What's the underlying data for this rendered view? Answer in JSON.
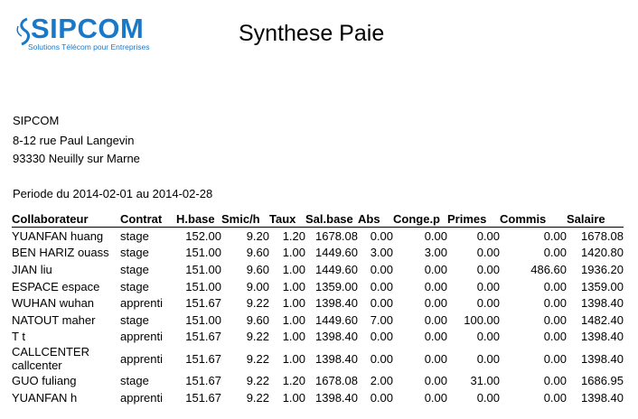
{
  "logo": {
    "text": "SIPCOM",
    "tagline": "Solutions Télécom pour Entreprises"
  },
  "title": "Synthese Paie",
  "company": {
    "name": "SIPCOM",
    "street": "8-12 rue Paul Langevin",
    "city": "93330 Neuilly sur Marne"
  },
  "period": "Periode du 2014-02-01 au 2014-02-28",
  "table": {
    "headers": [
      "Collaborateur",
      "Contrat",
      "H.base",
      "Smic/h",
      "Taux",
      "Sal.base",
      "Abs",
      "Conge.p",
      "Primes",
      "Commis",
      "Salaire"
    ],
    "rows": [
      [
        "YUANFAN huang",
        "stage",
        "152.00",
        "9.20",
        "1.20",
        "1678.08",
        "0.00",
        "0.00",
        "0.00",
        "0.00",
        "1678.08"
      ],
      [
        "BEN HARIZ ouass",
        "stage",
        "151.00",
        "9.60",
        "1.00",
        "1449.60",
        "3.00",
        "3.00",
        "0.00",
        "0.00",
        "1420.80"
      ],
      [
        "JIAN liu",
        "stage",
        "151.00",
        "9.60",
        "1.00",
        "1449.60",
        "0.00",
        "0.00",
        "0.00",
        "486.60",
        "1936.20"
      ],
      [
        "ESPACE espace",
        "stage",
        "151.00",
        "9.00",
        "1.00",
        "1359.00",
        "0.00",
        "0.00",
        "0.00",
        "0.00",
        "1359.00"
      ],
      [
        "WUHAN wuhan",
        "apprenti",
        "151.67",
        "9.22",
        "1.00",
        "1398.40",
        "0.00",
        "0.00",
        "0.00",
        "0.00",
        "1398.40"
      ],
      [
        "NATOUT maher",
        "stage",
        "151.00",
        "9.60",
        "1.00",
        "1449.60",
        "7.00",
        "0.00",
        "100.00",
        "0.00",
        "1482.40"
      ],
      [
        "T t",
        "apprenti",
        "151.67",
        "9.22",
        "1.00",
        "1398.40",
        "0.00",
        "0.00",
        "0.00",
        "0.00",
        "1398.40"
      ],
      [
        "CALLCENTER\ncallcenter",
        "apprenti",
        "151.67",
        "9.22",
        "1.00",
        "1398.40",
        "0.00",
        "0.00",
        "0.00",
        "0.00",
        "1398.40"
      ],
      [
        "GUO fuliang",
        "stage",
        "151.67",
        "9.22",
        "1.20",
        "1678.08",
        "2.00",
        "0.00",
        "31.00",
        "0.00",
        "1686.95"
      ],
      [
        "YUANFAN h",
        "apprenti",
        "151.67",
        "9.22",
        "1.00",
        "1398.40",
        "0.00",
        "0.00",
        "0.00",
        "0.00",
        "1398.40"
      ]
    ]
  }
}
